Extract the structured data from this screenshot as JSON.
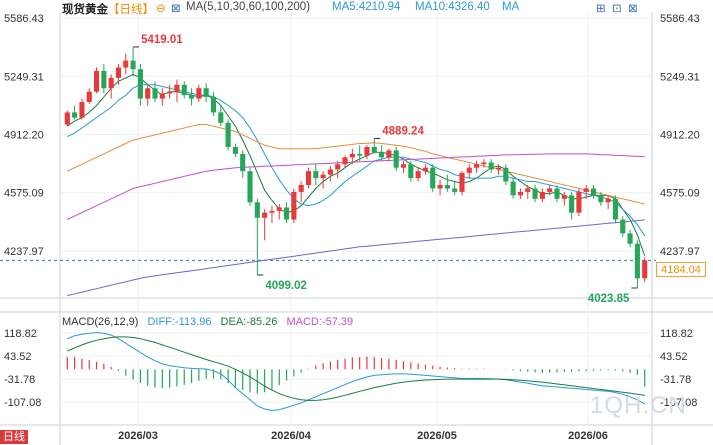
{
  "header": {
    "title": "现货黄金",
    "period": "【日线】",
    "ma_label": "MA(5,10,30,60,100,200)",
    "ma5": "MA5:4210.94",
    "ma10": "MA10:4326.40",
    "ma": "MA"
  },
  "macd_header": {
    "label": "MACD(26,12,9)",
    "diff": "DIFF:-113.96",
    "dea": "DEA:-85.26",
    "macd": "MACD:-57.39"
  },
  "price_badge": "4184.04",
  "hz_badge": "日线",
  "watermark": "1QH.CN",
  "colors": {
    "up": "#e8393c",
    "down": "#27a65a",
    "ma5": "#1a7d3d",
    "ma10": "#2a9ad6",
    "ma30": "#e58c39",
    "ma60": "#c14fc7",
    "ma100": "#7264c9",
    "accent": "#f08c00"
  },
  "chart_data": [
    {
      "type": "candlestick",
      "title": "现货黄金",
      "y_ticks": [
        "5586.43",
        "5249.31",
        "4912.20",
        "4575.09",
        "4237.97"
      ],
      "x_ticks": [
        "2026/03",
        "2026/04",
        "2026/05",
        "2026/06"
      ],
      "ylim": [
        4020,
        5590
      ],
      "current_price": 4184.04,
      "annotations": [
        {
          "text": "5419.01",
          "kind": "high"
        },
        {
          "text": "4099.02",
          "kind": "low"
        },
        {
          "text": "4889.24",
          "kind": "high"
        },
        {
          "text": "4023.85",
          "kind": "low"
        }
      ],
      "candles": [
        [
          4970,
          5050,
          4960,
          5040
        ],
        [
          5040,
          5080,
          5000,
          5010
        ],
        [
          5010,
          5120,
          5000,
          5100
        ],
        [
          5100,
          5180,
          5090,
          5160
        ],
        [
          5160,
          5300,
          5150,
          5280
        ],
        [
          5280,
          5320,
          5150,
          5180
        ],
        [
          5180,
          5260,
          5120,
          5240
        ],
        [
          5240,
          5320,
          5200,
          5300
        ],
        [
          5300,
          5380,
          5260,
          5340
        ],
        [
          5340,
          5419,
          5250,
          5290
        ],
        [
          5290,
          5320,
          5080,
          5120
        ],
        [
          5120,
          5200,
          5080,
          5180
        ],
        [
          5180,
          5220,
          5100,
          5120
        ],
        [
          5120,
          5180,
          5080,
          5150
        ],
        [
          5150,
          5200,
          5120,
          5160
        ],
        [
          5160,
          5230,
          5100,
          5200
        ],
        [
          5200,
          5220,
          5120,
          5140
        ],
        [
          5140,
          5180,
          5080,
          5120
        ],
        [
          5120,
          5200,
          5100,
          5180
        ],
        [
          5180,
          5210,
          5100,
          5130
        ],
        [
          5130,
          5160,
          5020,
          5040
        ],
        [
          5040,
          5080,
          4960,
          4980
        ],
        [
          4980,
          5000,
          4820,
          4840
        ],
        [
          4840,
          4860,
          4780,
          4800
        ],
        [
          4800,
          4820,
          4660,
          4700
        ],
        [
          4700,
          4720,
          4500,
          4520
        ],
        [
          4520,
          4540,
          4099,
          4430
        ],
        [
          4430,
          4480,
          4300,
          4460
        ],
        [
          4460,
          4500,
          4400,
          4470
        ],
        [
          4470,
          4510,
          4420,
          4490
        ],
        [
          4490,
          4520,
          4400,
          4420
        ],
        [
          4420,
          4600,
          4400,
          4580
        ],
        [
          4580,
          4640,
          4520,
          4620
        ],
        [
          4620,
          4720,
          4600,
          4700
        ],
        [
          4700,
          4740,
          4620,
          4660
        ],
        [
          4660,
          4700,
          4600,
          4680
        ],
        [
          4680,
          4730,
          4640,
          4710
        ],
        [
          4710,
          4760,
          4660,
          4740
        ],
        [
          4740,
          4790,
          4720,
          4780
        ],
        [
          4780,
          4830,
          4740,
          4800
        ],
        [
          4800,
          4850,
          4760,
          4790
        ],
        [
          4790,
          4850,
          4770,
          4840
        ],
        [
          4840,
          4889,
          4800,
          4810
        ],
        [
          4810,
          4850,
          4760,
          4780
        ],
        [
          4780,
          4830,
          4760,
          4820
        ],
        [
          4820,
          4840,
          4700,
          4720
        ],
        [
          4720,
          4760,
          4690,
          4740
        ],
        [
          4740,
          4760,
          4640,
          4660
        ],
        [
          4660,
          4720,
          4640,
          4700
        ],
        [
          4700,
          4740,
          4680,
          4720
        ],
        [
          4720,
          4740,
          4580,
          4600
        ],
        [
          4600,
          4650,
          4560,
          4620
        ],
        [
          4620,
          4680,
          4580,
          4600
        ],
        [
          4600,
          4640,
          4560,
          4580
        ],
        [
          4580,
          4700,
          4560,
          4690
        ],
        [
          4690,
          4740,
          4660,
          4720
        ],
        [
          4720,
          4760,
          4690,
          4740
        ],
        [
          4740,
          4770,
          4720,
          4750
        ],
        [
          4750,
          4770,
          4690,
          4710
        ],
        [
          4710,
          4740,
          4680,
          4720
        ],
        [
          4720,
          4740,
          4620,
          4640
        ],
        [
          4640,
          4660,
          4540,
          4560
        ],
        [
          4560,
          4600,
          4540,
          4580
        ],
        [
          4580,
          4620,
          4540,
          4600
        ],
        [
          4600,
          4620,
          4520,
          4540
        ],
        [
          4540,
          4600,
          4520,
          4580
        ],
        [
          4580,
          4620,
          4560,
          4600
        ],
        [
          4600,
          4620,
          4520,
          4540
        ],
        [
          4540,
          4580,
          4500,
          4560
        ],
        [
          4560,
          4580,
          4420,
          4460
        ],
        [
          4460,
          4600,
          4440,
          4580
        ],
        [
          4580,
          4620,
          4540,
          4600
        ],
        [
          4600,
          4620,
          4540,
          4560
        ],
        [
          4560,
          4580,
          4500,
          4520
        ],
        [
          4520,
          4560,
          4480,
          4540
        ],
        [
          4540,
          4560,
          4400,
          4420
        ],
        [
          4420,
          4440,
          4320,
          4340
        ],
        [
          4340,
          4360,
          4260,
          4280
        ],
        [
          4280,
          4300,
          4023.85,
          4080
        ],
        [
          4080,
          4200,
          4060,
          4184
        ]
      ],
      "ma_series": [
        {
          "name": "MA5",
          "values": [
            4960,
            4990,
            5010,
            5040,
            5080,
            5130,
            5180,
            5220,
            5240,
            5260,
            5240,
            5200,
            5170,
            5140,
            5160,
            5160,
            5150,
            5140,
            5130,
            5140,
            5120,
            5080,
            5020,
            4960,
            4880,
            4790,
            4690,
            4590,
            4530,
            4480,
            4460,
            4470,
            4500,
            4550,
            4600,
            4640,
            4670,
            4690,
            4720,
            4750,
            4770,
            4790,
            4810,
            4810,
            4800,
            4790,
            4770,
            4740,
            4720,
            4700,
            4690,
            4670,
            4650,
            4640,
            4630,
            4640,
            4660,
            4690,
            4720,
            4730,
            4710,
            4670,
            4640,
            4610,
            4590,
            4570,
            4570,
            4580,
            4560,
            4540,
            4540,
            4550,
            4560,
            4560,
            4560,
            4540,
            4480,
            4420,
            4330,
            4211
          ]
        },
        {
          "name": "MA10",
          "values": [
            4900,
            4920,
            4950,
            4980,
            5010,
            5040,
            5070,
            5110,
            5140,
            5180,
            5200,
            5200,
            5200,
            5190,
            5180,
            5170,
            5160,
            5150,
            5140,
            5140,
            5130,
            5110,
            5080,
            5050,
            5010,
            4950,
            4880,
            4800,
            4720,
            4650,
            4590,
            4540,
            4510,
            4500,
            4510,
            4530,
            4560,
            4600,
            4640,
            4670,
            4700,
            4730,
            4760,
            4770,
            4780,
            4780,
            4780,
            4770,
            4760,
            4750,
            4730,
            4710,
            4700,
            4680,
            4670,
            4660,
            4660,
            4660,
            4660,
            4670,
            4670,
            4660,
            4650,
            4640,
            4640,
            4630,
            4620,
            4610,
            4600,
            4590,
            4580,
            4570,
            4560,
            4550,
            4540,
            4520,
            4480,
            4440,
            4390,
            4326
          ]
        },
        {
          "name": "MA30",
          "values": [
            4700,
            4720,
            4740,
            4760,
            4780,
            4800,
            4820,
            4840,
            4860,
            4880,
            4890,
            4900,
            4910,
            4920,
            4930,
            4940,
            4950,
            4960,
            4970,
            4970,
            4960,
            4950,
            4940,
            4930,
            4910,
            4890,
            4870,
            4850,
            4840,
            4830,
            4830,
            4830,
            4830,
            4830,
            4830,
            4835,
            4840,
            4845,
            4850,
            4855,
            4860,
            4862,
            4865,
            4860,
            4855,
            4850,
            4845,
            4835,
            4825,
            4815,
            4800,
            4790,
            4780,
            4770,
            4760,
            4750,
            4740,
            4730,
            4720,
            4710,
            4700,
            4690,
            4680,
            4670,
            4660,
            4650,
            4640,
            4630,
            4620,
            4610,
            4600,
            4590,
            4580,
            4570,
            4560,
            4550,
            4540,
            4530,
            4520,
            4510
          ]
        },
        {
          "name": "MA60",
          "values": [
            4420,
            4440,
            4460,
            4480,
            4500,
            4520,
            4540,
            4560,
            4580,
            4600,
            4610,
            4620,
            4630,
            4640,
            4650,
            4660,
            4670,
            4680,
            4690,
            4700,
            4705,
            4710,
            4715,
            4720,
            4722,
            4724,
            4726,
            4728,
            4730,
            4732,
            4734,
            4736,
            4738,
            4740,
            4742,
            4744,
            4746,
            4748,
            4750,
            4752,
            4754,
            4756,
            4758,
            4760,
            4762,
            4764,
            4766,
            4768,
            4770,
            4772,
            4774,
            4776,
            4778,
            4780,
            4782,
            4784,
            4786,
            4788,
            4790,
            4792,
            4794,
            4795,
            4796,
            4797,
            4798,
            4799,
            4800,
            4800,
            4800,
            4800,
            4800,
            4800,
            4798,
            4796,
            4794,
            4792,
            4790,
            4788,
            4786,
            4784
          ]
        },
        {
          "name": "MA100",
          "values": [
            3980,
            3990,
            4000,
            4010,
            4020,
            4030,
            4040,
            4050,
            4060,
            4070,
            4080,
            4088,
            4094,
            4100,
            4106,
            4112,
            4118,
            4124,
            4130,
            4136,
            4142,
            4148,
            4154,
            4160,
            4166,
            4172,
            4178,
            4184,
            4190,
            4196,
            4202,
            4208,
            4214,
            4220,
            4226,
            4232,
            4238,
            4244,
            4250,
            4256,
            4262,
            4266,
            4270,
            4274,
            4278,
            4282,
            4286,
            4290,
            4294,
            4298,
            4302,
            4306,
            4310,
            4314,
            4318,
            4322,
            4326,
            4330,
            4334,
            4338,
            4342,
            4346,
            4350,
            4354,
            4358,
            4362,
            4366,
            4370,
            4374,
            4378,
            4382,
            4386,
            4390,
            4394,
            4398,
            4402,
            4406,
            4410,
            4414,
            4418
          ]
        }
      ]
    },
    {
      "type": "macd",
      "y_ticks": [
        "118.82",
        "43.52",
        "-31.78",
        "-107.08"
      ],
      "ylim": [
        -150,
        140
      ],
      "diff": [
        100,
        110,
        115,
        118,
        120,
        118,
        112,
        100,
        85,
        70,
        55,
        40,
        28,
        18,
        12,
        8,
        5,
        3,
        2,
        1,
        -5,
        -15,
        -35,
        -60,
        -80,
        -100,
        -120,
        -130,
        -135,
        -132,
        -125,
        -118,
        -110,
        -100,
        -90,
        -80,
        -70,
        -60,
        -50,
        -40,
        -32,
        -25,
        -20,
        -18,
        -16,
        -15,
        -15,
        -16,
        -18,
        -20,
        -22,
        -24,
        -26,
        -28,
        -30,
        -30,
        -30,
        -30,
        -31,
        -32,
        -34,
        -38,
        -42,
        -46,
        -50,
        -54,
        -56,
        -58,
        -60,
        -62,
        -64,
        -66,
        -68,
        -70,
        -72,
        -76,
        -82,
        -90,
        -100,
        -113.96
      ],
      "dea": [
        60,
        70,
        80,
        88,
        95,
        100,
        104,
        106,
        106,
        104,
        100,
        94,
        88,
        80,
        72,
        64,
        56,
        48,
        40,
        32,
        25,
        18,
        10,
        0,
        -12,
        -25,
        -40,
        -55,
        -68,
        -80,
        -88,
        -95,
        -100,
        -102,
        -102,
        -100,
        -96,
        -91,
        -85,
        -79,
        -72,
        -66,
        -60,
        -55,
        -50,
        -46,
        -42,
        -39,
        -37,
        -35,
        -34,
        -33,
        -32,
        -32,
        -32,
        -32,
        -32,
        -32,
        -32,
        -32,
        -33,
        -34,
        -36,
        -38,
        -40,
        -42,
        -45,
        -48,
        -51,
        -54,
        -57,
        -60,
        -63,
        -66,
        -69,
        -72,
        -75,
        -78,
        -82,
        -85.26
      ],
      "histogram": [
        40,
        40,
        35,
        30,
        25,
        18,
        8,
        -6,
        -21,
        -34,
        -45,
        -54,
        -60,
        -62,
        -60,
        -56,
        -51,
        -45,
        -38,
        -31,
        -30,
        -33,
        -45,
        -60,
        -68,
        -75,
        -80,
        -75,
        -67,
        -52,
        -37,
        -23,
        -10,
        2,
        12,
        20,
        26,
        31,
        35,
        39,
        40,
        41,
        40,
        37,
        34,
        31,
        27,
        23,
        19,
        15,
        12,
        9,
        6,
        4,
        2,
        2,
        2,
        2,
        1,
        0,
        -1,
        -4,
        -6,
        -8,
        -10,
        -12,
        -11,
        -10,
        -9,
        -8,
        -7,
        -6,
        -5,
        -4,
        -3,
        -4,
        -7,
        -12,
        -18,
        -57.39
      ]
    }
  ]
}
